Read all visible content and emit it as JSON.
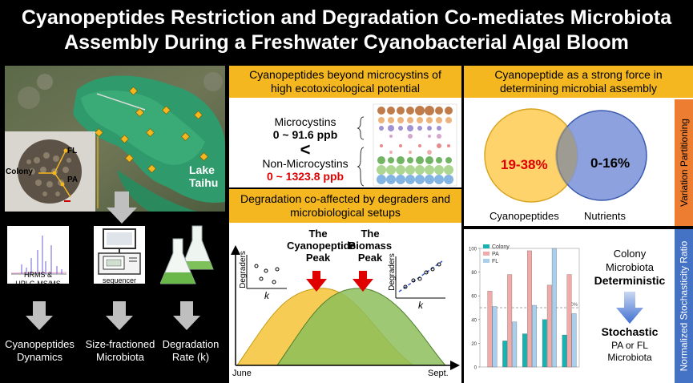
{
  "title": {
    "line1": "Cyanopeptides Restriction and Degradation Co-mediates Microbiota",
    "line2": "Assembly During a Freshwater Cyanobacterial Algal Bloom"
  },
  "left": {
    "lake_label_1": "Lake",
    "lake_label_2": "Taihu",
    "fraction_labels": {
      "colony": "Colony",
      "fl": "FL",
      "pa": "PA"
    },
    "hrms_label_1": "HRMS &",
    "hrms_label_2": "UPLC-MS/MS",
    "sequencer_label": "sequencer",
    "bottom_labels": [
      {
        "line1": "Cyanopeptides",
        "line2": "Dynamics"
      },
      {
        "line1": "Size-fractioned",
        "line2": "Microbiota"
      },
      {
        "line1": "Degradation",
        "line2": "Rate (k)"
      }
    ]
  },
  "mid_top": {
    "header_1": "Cyanopeptides beyond microcystins of",
    "header_2": "high ecotoxicological potential",
    "mc_label": "Microcystins",
    "mc_range": "0 ~ 91.6 ppb",
    "less_than": "<",
    "nonmc_label": "Non-Microcystins",
    "nonmc_range": "0 ~ 1323.8 ppb"
  },
  "mid_bottom": {
    "header_1": "Degradation co-affected by degraders and",
    "header_2": "microbiological setups",
    "peak1_1": "The",
    "peak1_2": "Cyanopeptide",
    "peak1_3": "Peak",
    "peak2_1": "The",
    "peak2_2": "Biomass",
    "peak2_3": "Peak",
    "ylabel": "Degraders",
    "xlabel": "k",
    "x_start": "June",
    "x_end": "Sept."
  },
  "right_top": {
    "header_1": "Cyanopeptide as a strong force in",
    "header_2": "determining microbial assembly",
    "venn_left_value": "19-38%",
    "venn_right_value": "0-16%",
    "venn_left_label": "Cyanopeptides",
    "venn_right_label": "Nutrients",
    "side_label": "Variation Partitioning"
  },
  "right_bottom": {
    "colony_1": "Colony",
    "colony_2": "Microbiota",
    "deterministic": "Deterministic",
    "stochastic": "Stochastic",
    "pa_fl_1": "PA or FL",
    "pa_fl_2": "Microbiota",
    "side_label": "Normalized Stochasticity Ratio",
    "threshold_label": "50%"
  },
  "colors": {
    "accent_yellow": "#f4b71f",
    "venn_yellow": "#ffd36b",
    "venn_blue": "#7f97d9",
    "side_orange": "#ed7d31",
    "side_blue": "#4472c4",
    "red": "#e00000"
  },
  "chart_data": {
    "type": "bar",
    "series": [
      {
        "name": "Colony",
        "color": "#17b3b1",
        "values": [
          null,
          22,
          28,
          40,
          27
        ]
      },
      {
        "name": "PA",
        "color": "#f2aaa8",
        "values": [
          64,
          78,
          98,
          69,
          78
        ]
      },
      {
        "name": "FL",
        "color": "#a9cfee",
        "values": [
          51,
          38,
          52,
          100,
          45
        ]
      }
    ],
    "yticks": [
      "0",
      "20",
      "40",
      "60",
      "80",
      "100"
    ],
    "ylim": [
      0,
      100
    ],
    "threshold": 50
  }
}
